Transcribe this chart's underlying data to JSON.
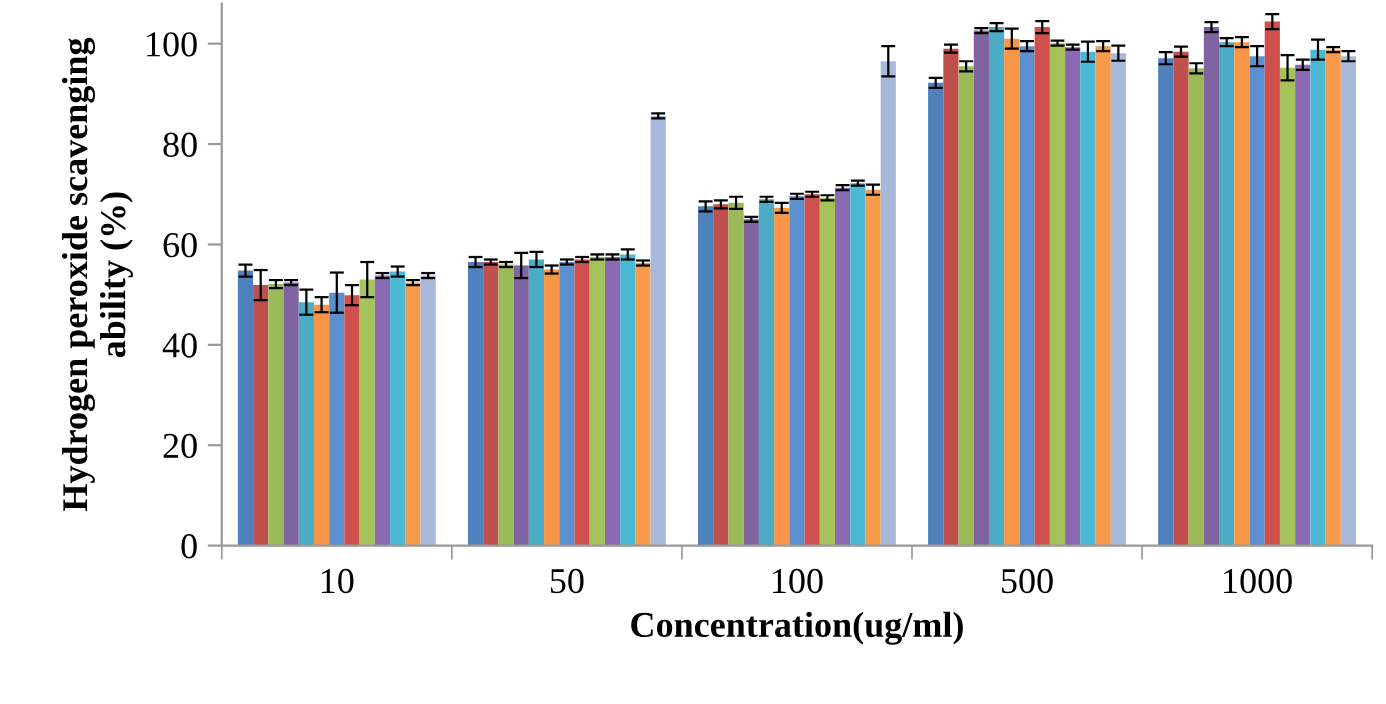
{
  "chart_data": {
    "type": "bar",
    "xlabel": "Concentration(ug/ml)",
    "ylabel": "Hydrogen peroxide scavenging ability (%)",
    "categories": [
      "10",
      "50",
      "100",
      "500",
      "1000"
    ],
    "ylim": [
      0,
      108
    ],
    "yticks": [
      0,
      20,
      40,
      60,
      80,
      100
    ],
    "grid": false,
    "legend": false,
    "series": [
      {
        "color": "#4f81bd",
        "values": [
          54.8,
          56.5,
          67.6,
          92.2,
          97.1
        ],
        "errors": [
          1.2,
          1,
          1,
          1,
          1.2
        ]
      },
      {
        "color": "#c0504d",
        "values": [
          51.9,
          56.5,
          68,
          99,
          98.4
        ],
        "errors": [
          3,
          0.5,
          0.8,
          0.8,
          1
        ]
      },
      {
        "color": "#9bbb59",
        "values": [
          52.1,
          56,
          68.3,
          95.5,
          95.1
        ],
        "errors": [
          0.8,
          0.5,
          1.2,
          1,
          1
        ]
      },
      {
        "color": "#8064a2",
        "values": [
          52.4,
          55.8,
          65,
          102.6,
          103.3
        ],
        "errors": [
          0.5,
          2.5,
          0.5,
          0.5,
          1
        ]
      },
      {
        "color": "#4bacc6",
        "values": [
          48.5,
          57,
          69,
          103.3,
          100.3
        ],
        "errors": [
          2.5,
          1.5,
          0.5,
          0.8,
          0.8
        ]
      },
      {
        "color": "#f79646",
        "values": [
          48,
          55,
          67.3,
          101,
          100.3
        ],
        "errors": [
          1.5,
          0.8,
          1,
          2,
          1
        ]
      },
      {
        "color": "#5b8fd0",
        "values": [
          50.4,
          56.5,
          69.6,
          99.5,
          97.5
        ],
        "errors": [
          4,
          0.5,
          0.5,
          1,
          2
        ]
      },
      {
        "color": "#d0504d",
        "values": [
          49.9,
          57,
          70,
          103.3,
          104.4
        ],
        "errors": [
          2,
          0.5,
          0.5,
          1.2,
          1.5
        ]
      },
      {
        "color": "#a5c35a",
        "values": [
          53,
          57.5,
          69.3,
          100.1,
          95.2
        ],
        "errors": [
          3.5,
          0.5,
          0.5,
          0.5,
          2.5
        ]
      },
      {
        "color": "#8a6bb3",
        "values": [
          53.8,
          57.5,
          71.3,
          99.3,
          95.8
        ],
        "errors": [
          0.5,
          0.5,
          0.5,
          0.5,
          1
        ]
      },
      {
        "color": "#4bb8d4",
        "values": [
          54.6,
          58,
          72.2,
          98.4,
          98.8
        ],
        "errors": [
          1,
          1,
          0.5,
          2,
          2
        ]
      },
      {
        "color": "#f79a4a",
        "values": [
          52.4,
          56.3,
          70.9,
          99.5,
          98.8
        ],
        "errors": [
          0.5,
          0.5,
          1,
          1,
          0.5
        ]
      },
      {
        "color": "#a8b9db",
        "values": [
          53.8,
          85.6,
          96.5,
          98.1,
          97.5
        ],
        "errors": [
          0.5,
          0.5,
          3,
          1.5,
          1
        ]
      }
    ]
  }
}
